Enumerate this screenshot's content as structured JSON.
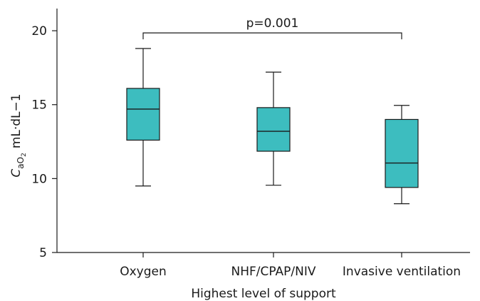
{
  "chart_data": {
    "type": "box",
    "xlabel": "Highest level of support",
    "ylabel": {
      "symbol": "C",
      "sub1": "aO",
      "sub2": "2",
      "units": "mL·dL−1"
    },
    "ylim": [
      5,
      21.5
    ],
    "yticks": [
      5,
      10,
      15,
      20
    ],
    "categories": [
      "Oxygen",
      "NHF/CPAP/NIV",
      "Invasive ventilation"
    ],
    "boxes": [
      {
        "min": 9.5,
        "q1": 12.6,
        "median": 14.7,
        "q3": 16.1,
        "max": 18.8
      },
      {
        "min": 9.55,
        "q1": 11.85,
        "median": 13.2,
        "q3": 14.8,
        "max": 17.2
      },
      {
        "min": 8.3,
        "q1": 9.4,
        "median": 11.05,
        "q3": 14.0,
        "max": 14.95
      }
    ],
    "box_color": "#3dbdbf",
    "annotation": {
      "text": "p=0.001",
      "from": 0,
      "to": 2,
      "y": 20.0
    },
    "grid": false,
    "legend": "none"
  }
}
